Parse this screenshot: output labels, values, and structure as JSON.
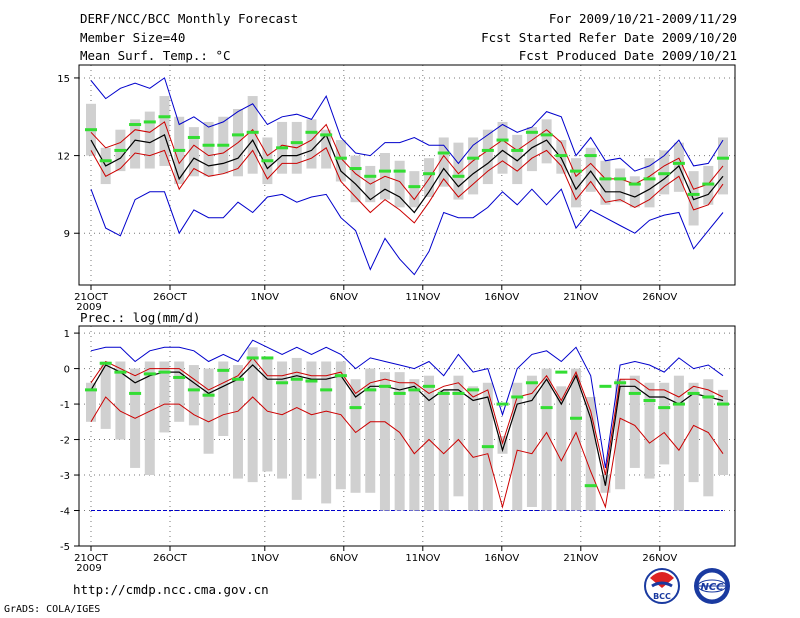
{
  "header": {
    "title": "DERF/NCC/BCC Monthly Forecast",
    "member_size": "Member Size=40",
    "variable": "Mean Surf. Temp.: °C",
    "period": "For 2009/10/21-2009/11/29",
    "start": "Fcst Started Refer Date 2009/10/20",
    "produced": "Fcst Produced Date 2009/10/21"
  },
  "footer": {
    "url": "http://cmdp.ncc.cma.gov.cn",
    "grads": "GrADS: COLA/IGES",
    "logo1_text": "BCC",
    "logo2_text": "NCC"
  },
  "colors": {
    "mean": "#000000",
    "spread": "#cc0000",
    "extreme": "#0000cc",
    "box": "#d0d0d0",
    "median": "#33dd33",
    "grid": "#777777"
  },
  "chart_data": [
    {
      "type": "line",
      "title": "Mean Surf. Temp.: °C",
      "x_days": 40,
      "x_ticks": [
        {
          "day": 0,
          "label": "21OCT",
          "sub": "2009"
        },
        {
          "day": 5,
          "label": "26OCT"
        },
        {
          "day": 11,
          "label": "1NOV"
        },
        {
          "day": 16,
          "label": "6NOV"
        },
        {
          "day": 21,
          "label": "11NOV"
        },
        {
          "day": 26,
          "label": "16NOV"
        },
        {
          "day": 31,
          "label": "21NOV"
        },
        {
          "day": 36,
          "label": "26NOV"
        }
      ],
      "ylim": [
        7,
        15.5
      ],
      "y_ticks": [
        9,
        12,
        15
      ],
      "series": {
        "mean": [
          12.6,
          11.6,
          11.9,
          12.6,
          12.5,
          12.8,
          11.1,
          11.9,
          11.6,
          11.7,
          11.9,
          12.6,
          11.5,
          12.0,
          12.0,
          12.2,
          12.8,
          11.4,
          10.9,
          10.3,
          10.7,
          10.4,
          9.8,
          10.6,
          11.5,
          10.8,
          11.3,
          11.7,
          12.2,
          11.8,
          12.3,
          12.6,
          11.9,
          10.7,
          11.4,
          10.6,
          10.6,
          10.4,
          10.7,
          11.1,
          11.6,
          10.3,
          10.5,
          11.2
        ],
        "upper": [
          12.9,
          12.3,
          12.5,
          13.0,
          12.9,
          13.3,
          11.7,
          12.4,
          12.0,
          12.1,
          12.5,
          13.0,
          12.0,
          12.4,
          12.3,
          12.6,
          13.2,
          11.9,
          11.3,
          10.9,
          11.2,
          11.0,
          10.3,
          11.1,
          12.0,
          11.3,
          11.8,
          12.2,
          12.6,
          12.2,
          12.6,
          13.0,
          12.5,
          11.2,
          11.7,
          11.1,
          11.1,
          10.9,
          11.2,
          11.6,
          11.9,
          10.7,
          10.9,
          11.6
        ],
        "lower": [
          12.2,
          11.2,
          11.5,
          12.1,
          12.0,
          12.2,
          10.7,
          11.5,
          11.2,
          11.3,
          11.5,
          12.2,
          11.1,
          11.7,
          11.7,
          11.9,
          12.3,
          11.0,
          10.4,
          9.8,
          10.3,
          9.9,
          9.4,
          10.2,
          11.1,
          10.4,
          10.9,
          11.4,
          11.8,
          11.4,
          11.9,
          12.2,
          11.6,
          10.3,
          11.0,
          10.2,
          10.3,
          10.0,
          10.3,
          10.8,
          11.2,
          9.9,
          10.1,
          10.9
        ],
        "max": [
          14.9,
          14.2,
          14.6,
          14.8,
          14.6,
          15.0,
          13.2,
          13.5,
          13.1,
          13.3,
          13.7,
          14.0,
          13.2,
          13.5,
          13.6,
          13.4,
          14.3,
          12.7,
          12.1,
          12.0,
          12.5,
          12.5,
          12.7,
          12.4,
          12.4,
          11.7,
          12.4,
          12.8,
          13.2,
          12.9,
          13.1,
          13.7,
          13.5,
          12.0,
          12.7,
          11.8,
          11.9,
          11.4,
          11.6,
          12.0,
          12.6,
          11.6,
          11.7,
          12.6
        ],
        "min": [
          10.7,
          9.2,
          8.9,
          10.3,
          10.6,
          10.6,
          9.0,
          9.9,
          9.6,
          9.6,
          10.2,
          9.8,
          10.4,
          10.5,
          10.2,
          10.4,
          10.5,
          9.6,
          9.1,
          7.6,
          8.8,
          8.0,
          7.4,
          8.3,
          9.8,
          9.6,
          9.6,
          10.0,
          10.6,
          10.1,
          10.7,
          10.1,
          10.7,
          9.2,
          9.9,
          9.6,
          9.3,
          9.0,
          9.5,
          9.7,
          9.8,
          8.4,
          9.1,
          9.8
        ],
        "box_top": [
          14.0,
          12.3,
          13.0,
          13.4,
          13.7,
          14.3,
          13.5,
          13.1,
          13.3,
          13.5,
          13.8,
          14.3,
          12.7,
          13.3,
          13.3,
          13.4,
          13.0,
          12.6,
          12.0,
          11.6,
          12.1,
          11.8,
          11.4,
          11.9,
          12.7,
          12.5,
          12.7,
          13.0,
          13.3,
          12.8,
          13.1,
          13.4,
          12.6,
          11.9,
          12.3,
          11.8,
          11.5,
          11.2,
          11.9,
          12.2,
          12.5,
          11.4,
          11.6,
          12.7
        ],
        "box_bot": [
          12.0,
          10.9,
          11.4,
          11.5,
          11.5,
          11.6,
          10.9,
          11.2,
          11.2,
          11.3,
          11.2,
          11.3,
          10.9,
          11.3,
          11.3,
          11.5,
          11.5,
          11.0,
          10.2,
          10.2,
          10.3,
          10.0,
          10.0,
          10.4,
          10.8,
          10.3,
          10.5,
          10.9,
          11.3,
          10.9,
          11.4,
          11.7,
          11.3,
          10.0,
          10.6,
          10.1,
          10.2,
          10.0,
          10.0,
          10.5,
          10.6,
          9.3,
          10.1,
          10.5
        ],
        "median": [
          13.0,
          11.8,
          12.2,
          13.2,
          13.3,
          13.5,
          12.2,
          12.7,
          12.4,
          12.4,
          12.8,
          12.9,
          11.8,
          12.3,
          12.5,
          12.9,
          12.8,
          11.9,
          11.5,
          11.2,
          11.4,
          11.4,
          10.8,
          11.3,
          12.1,
          11.2,
          11.9,
          12.2,
          12.6,
          12.2,
          12.9,
          12.8,
          12.0,
          11.4,
          12.0,
          11.1,
          11.1,
          10.9,
          11.1,
          11.3,
          11.7,
          10.5,
          10.9,
          11.9
        ]
      }
    },
    {
      "type": "line",
      "title": "Prec.: log(mm/d)",
      "x_days": 40,
      "x_ticks": [
        {
          "day": 0,
          "label": "21OCT",
          "sub": "2009"
        },
        {
          "day": 5,
          "label": "26OCT"
        },
        {
          "day": 11,
          "label": "1NOV"
        },
        {
          "day": 16,
          "label": "6NOV"
        },
        {
          "day": 21,
          "label": "11NOV"
        },
        {
          "day": 26,
          "label": "16NOV"
        },
        {
          "day": 31,
          "label": "21NOV"
        },
        {
          "day": 36,
          "label": "26NOV"
        }
      ],
      "ylim": [
        -5,
        1.2
      ],
      "y_ticks": [
        -5,
        -4,
        -3,
        -2,
        -1,
        0,
        1
      ],
      "floor": -4,
      "series": {
        "mean": [
          -0.6,
          0.1,
          -0.1,
          -0.4,
          -0.2,
          -0.1,
          -0.1,
          -0.4,
          -0.7,
          -0.5,
          -0.3,
          0.1,
          -0.3,
          -0.3,
          -0.2,
          -0.3,
          -0.3,
          -0.2,
          -0.8,
          -0.5,
          -0.5,
          -0.6,
          -0.5,
          -0.9,
          -0.6,
          -0.6,
          -0.9,
          -0.8,
          -2.3,
          -1.0,
          -0.9,
          -0.3,
          -1.0,
          -0.2,
          -1.4,
          -3.3,
          -0.5,
          -0.5,
          -0.8,
          -0.8,
          -1.0,
          -0.7,
          -0.8,
          -0.9
        ],
        "upper": [
          -0.4,
          0.2,
          0.0,
          -0.2,
          0.0,
          0.0,
          0.0,
          -0.3,
          -0.6,
          -0.4,
          -0.2,
          0.3,
          -0.2,
          -0.2,
          -0.1,
          -0.2,
          -0.2,
          -0.1,
          -0.7,
          -0.4,
          -0.3,
          -0.4,
          -0.4,
          -0.7,
          -0.5,
          -0.4,
          -0.8,
          -0.6,
          -2.1,
          -0.8,
          -0.7,
          -0.2,
          -0.9,
          -0.1,
          -1.2,
          -3.0,
          -0.3,
          -0.3,
          -0.6,
          -0.6,
          -0.8,
          -0.5,
          -0.6,
          -0.8
        ],
        "lower": [
          -1.5,
          -0.8,
          -1.2,
          -1.4,
          -1.2,
          -1.0,
          -1.0,
          -1.3,
          -1.5,
          -1.3,
          -1.2,
          -0.8,
          -1.2,
          -1.3,
          -1.1,
          -1.3,
          -1.2,
          -1.3,
          -1.8,
          -1.5,
          -1.5,
          -1.8,
          -2.4,
          -2.0,
          -2.4,
          -2.0,
          -2.5,
          -2.4,
          -3.9,
          -2.3,
          -2.4,
          -1.8,
          -2.6,
          -1.8,
          -2.9,
          -3.9,
          -1.4,
          -1.6,
          -2.1,
          -1.8,
          -2.3,
          -1.6,
          -1.8,
          -2.4
        ],
        "max": [
          0.5,
          0.6,
          0.6,
          0.2,
          0.5,
          0.6,
          0.6,
          0.5,
          0.2,
          0.4,
          0.2,
          0.8,
          0.6,
          0.4,
          0.6,
          0.4,
          0.6,
          0.4,
          0.0,
          0.3,
          0.2,
          0.1,
          0.0,
          0.2,
          -0.2,
          0.4,
          -0.1,
          0.0,
          -1.3,
          0.0,
          0.4,
          0.5,
          0.2,
          0.6,
          -0.2,
          -2.8,
          0.1,
          0.2,
          0.1,
          -0.1,
          0.3,
          0.0,
          0.1,
          -0.2
        ],
        "box_top": [
          -0.4,
          0.2,
          0.2,
          0.0,
          0.2,
          0.2,
          0.2,
          0.1,
          0.0,
          0.2,
          0.1,
          0.6,
          0.3,
          0.2,
          0.3,
          0.2,
          0.2,
          0.2,
          -0.3,
          0.0,
          -0.1,
          -0.1,
          -0.3,
          -0.2,
          -0.6,
          -0.2,
          -0.5,
          -0.4,
          -1.9,
          -0.4,
          -0.2,
          0.0,
          -0.5,
          0.0,
          -0.8,
          -3.0,
          -0.3,
          -0.2,
          -0.4,
          -0.4,
          -0.2,
          -0.4,
          -0.3,
          -0.6
        ],
        "box_bot": [
          -1.5,
          -1.7,
          -2.0,
          -2.8,
          -3.0,
          -1.8,
          -1.5,
          -1.6,
          -2.4,
          -1.9,
          -3.1,
          -3.2,
          -2.9,
          -3.1,
          -3.7,
          -3.1,
          -3.8,
          -3.4,
          -3.5,
          -3.5,
          -4.0,
          -4.0,
          -4.0,
          -4.0,
          -4.0,
          -3.6,
          -4.0,
          -4.0,
          -2.4,
          -4.0,
          -3.9,
          -4.0,
          -4.0,
          -4.0,
          -4.0,
          -3.5,
          -3.4,
          -2.8,
          -3.1,
          -2.7,
          -4.0,
          -3.2,
          -3.6,
          -3.0
        ],
        "median": [
          -0.6,
          0.15,
          -0.1,
          -0.7,
          -0.15,
          -0.1,
          -0.25,
          -0.6,
          -0.75,
          -0.05,
          -0.3,
          0.3,
          0.3,
          -0.4,
          -0.3,
          -0.35,
          -0.6,
          -0.2,
          -1.1,
          -0.6,
          -0.5,
          -0.7,
          -0.6,
          -0.5,
          -0.7,
          -0.7,
          -0.6,
          -2.2,
          -1.0,
          -0.8,
          -0.4,
          -1.1,
          -0.1,
          -1.4,
          -3.3,
          -0.5,
          -0.4,
          -0.7,
          -0.9,
          -1.1,
          -1.0,
          -0.7,
          -0.8,
          -1.0
        ]
      }
    }
  ]
}
